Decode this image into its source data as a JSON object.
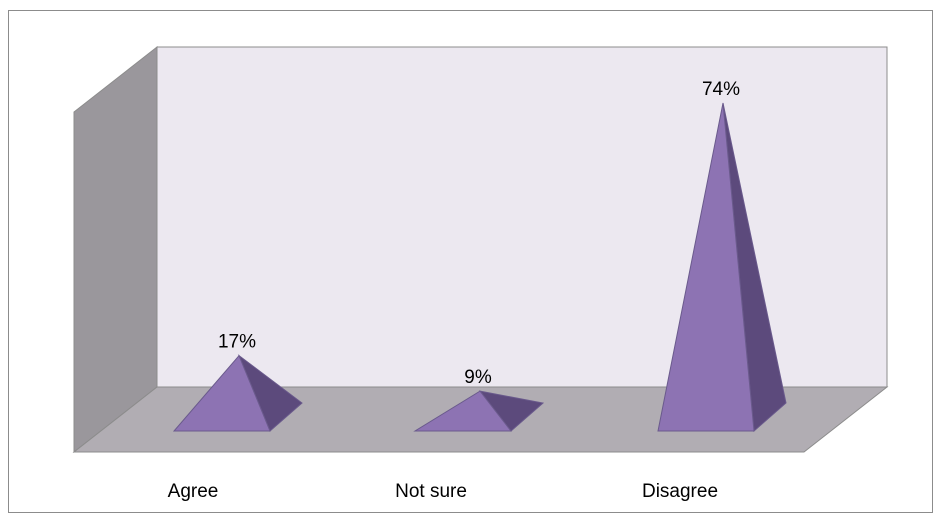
{
  "chart_data": {
    "type": "bar",
    "style": "3d-pyramid",
    "categories": [
      "Agree",
      "Not sure",
      "Disagree"
    ],
    "values": [
      17,
      9,
      74
    ],
    "data_labels": [
      "17%",
      "9%",
      "74%"
    ],
    "title": "",
    "xlabel": "",
    "ylabel": "",
    "ylim": [
      0,
      80
    ],
    "grid": false,
    "legend": "none"
  },
  "colors": {
    "back_wall": "#ECE8F0",
    "side_wall": "#9A979C",
    "floor": "#B1ADB3",
    "pyramid_front": "#8D73B3",
    "pyramid_side": "#5C4A7C",
    "outline": "#6A5A8C"
  }
}
